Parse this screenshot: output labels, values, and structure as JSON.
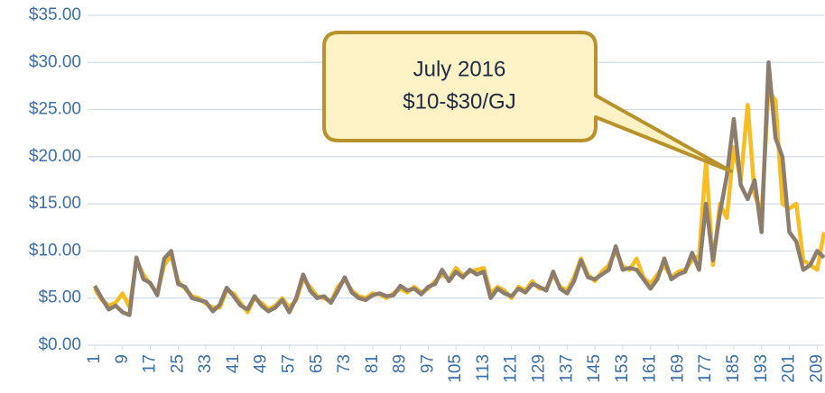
{
  "chart_data": {
    "type": "line",
    "annotation": [
      "July 2016",
      "$10-$30/GJ"
    ],
    "x": [
      1,
      3,
      5,
      7,
      9,
      11,
      13,
      15,
      17,
      19,
      21,
      23,
      25,
      27,
      29,
      31,
      33,
      35,
      37,
      39,
      41,
      43,
      45,
      47,
      49,
      51,
      53,
      55,
      57,
      59,
      61,
      63,
      65,
      67,
      69,
      71,
      73,
      75,
      77,
      79,
      81,
      83,
      85,
      87,
      89,
      91,
      93,
      95,
      97,
      99,
      101,
      103,
      105,
      107,
      109,
      111,
      113,
      115,
      117,
      119,
      121,
      123,
      125,
      127,
      129,
      131,
      133,
      135,
      137,
      139,
      141,
      143,
      145,
      147,
      149,
      151,
      153,
      155,
      157,
      159,
      161,
      163,
      165,
      167,
      169,
      171,
      173,
      175,
      177,
      179,
      181,
      183,
      185,
      187,
      189,
      191,
      193,
      195,
      197,
      199,
      201,
      203,
      205,
      207,
      209,
      211
    ],
    "series": [
      {
        "color": "#f7bd22",
        "values": [
          6.0,
          4.8,
          4.2,
          4.5,
          5.5,
          4.0,
          9.0,
          7.5,
          6.5,
          5.5,
          8.5,
          9.5,
          6.8,
          6.0,
          5.2,
          5.0,
          4.4,
          4.0,
          4.0,
          5.8,
          5.5,
          4.5,
          3.5,
          5.0,
          4.5,
          3.8,
          4.2,
          5.0,
          4.0,
          4.8,
          7.0,
          6.2,
          5.2,
          5.0,
          4.6,
          6.2,
          7.0,
          5.8,
          5.2,
          5.0,
          5.5,
          5.4,
          5.0,
          5.5,
          6.0,
          5.6,
          6.2,
          5.6,
          6.0,
          6.8,
          7.5,
          7.0,
          8.2,
          7.4,
          7.8,
          8.0,
          8.2,
          5.5,
          6.2,
          5.8,
          5.0,
          6.2,
          5.8,
          6.8,
          6.0,
          6.0,
          7.5,
          6.2,
          5.8,
          7.2,
          9.2,
          7.5,
          6.8,
          7.8,
          8.5,
          10.0,
          8.4,
          8.0,
          9.2,
          7.2,
          6.5,
          7.5,
          8.5,
          7.2,
          7.8,
          8.0,
          9.0,
          9.5,
          19.5,
          8.5,
          15.0,
          13.5,
          21.0,
          17.5,
          25.5,
          16.0,
          14.0,
          27.0,
          26.0,
          15.0,
          14.5,
          15.0,
          9.0,
          8.5,
          8.0,
          12.0
        ]
      },
      {
        "color": "#8c7d6c",
        "values": [
          6.3,
          5.0,
          3.8,
          4.2,
          3.5,
          3.2,
          9.3,
          7.0,
          6.6,
          5.3,
          9.2,
          10.0,
          6.5,
          6.2,
          5.0,
          4.8,
          4.6,
          3.6,
          4.3,
          6.1,
          5.2,
          4.2,
          3.8,
          5.2,
          4.2,
          3.6,
          4.0,
          4.8,
          3.5,
          5.0,
          7.5,
          5.8,
          5.0,
          5.2,
          4.5,
          5.8,
          7.2,
          5.6,
          5.0,
          4.8,
          5.3,
          5.5,
          5.2,
          5.3,
          6.3,
          5.8,
          6.0,
          5.4,
          6.2,
          6.5,
          8.0,
          6.8,
          7.8,
          7.2,
          8.0,
          7.5,
          7.8,
          5.0,
          6.0,
          5.5,
          5.2,
          6.0,
          5.6,
          6.5,
          6.2,
          5.8,
          7.8,
          6.0,
          5.5,
          6.8,
          9.0,
          7.2,
          7.0,
          7.5,
          8.0,
          10.5,
          8.0,
          8.2,
          8.0,
          7.0,
          6.0,
          7.0,
          9.2,
          7.0,
          7.5,
          7.8,
          9.8,
          8.0,
          15.0,
          9.0,
          14.0,
          18.0,
          24.0,
          17.0,
          15.5,
          17.5,
          12.0,
          30.0,
          22.0,
          20.0,
          12.0,
          11.0,
          8.0,
          8.5,
          10.0,
          9.3
        ]
      }
    ],
    "xlim": [
      1,
      211
    ],
    "xticks": [
      1,
      9,
      17,
      25,
      33,
      41,
      49,
      57,
      65,
      73,
      81,
      89,
      97,
      105,
      113,
      121,
      129,
      137,
      145,
      153,
      161,
      169,
      177,
      185,
      193,
      201,
      209
    ],
    "ylim": [
      0,
      35
    ],
    "yticks": [
      {
        "value": 0,
        "label": "$0.00"
      },
      {
        "value": 5,
        "label": "$5.00"
      },
      {
        "value": 10,
        "label": "$10.00"
      },
      {
        "value": 15,
        "label": "$15.00"
      },
      {
        "value": 20,
        "label": "$20.00"
      },
      {
        "value": 25,
        "label": "$25.00"
      },
      {
        "value": 30,
        "label": "$30.00"
      },
      {
        "value": 35,
        "label": "$35.00"
      }
    ],
    "grid": true
  }
}
